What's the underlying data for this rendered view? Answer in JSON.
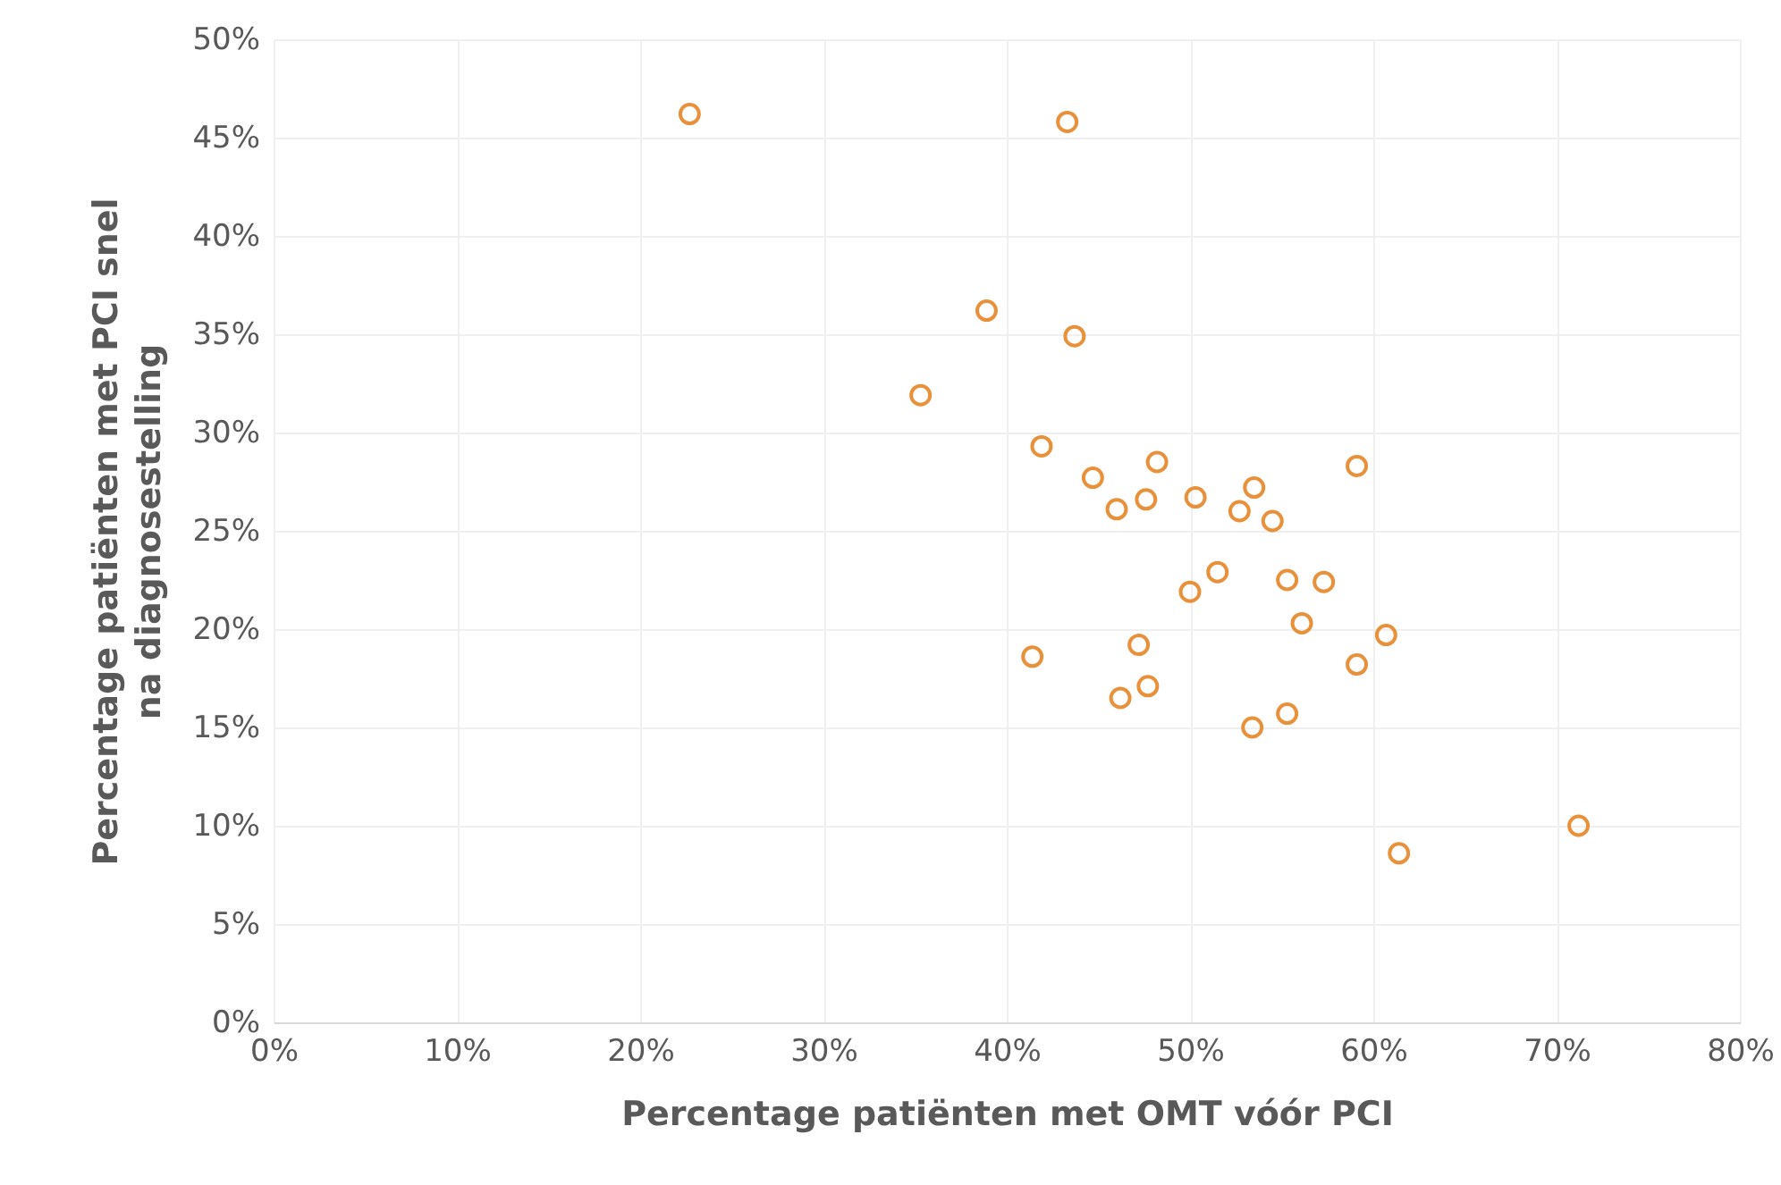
{
  "chart_data": {
    "type": "scatter",
    "xlabel": "Percentage patiënten met OMT vóór PCI",
    "ylabel": "Percentage patiënten met PCI snel\nna diagnosestelling",
    "xlim": [
      0,
      80
    ],
    "ylim": [
      0,
      50
    ],
    "xticks": [
      {
        "value": 0,
        "label": "0%"
      },
      {
        "value": 10,
        "label": "10%"
      },
      {
        "value": 20,
        "label": "20%"
      },
      {
        "value": 30,
        "label": "30%"
      },
      {
        "value": 40,
        "label": "40%"
      },
      {
        "value": 50,
        "label": "50%"
      },
      {
        "value": 60,
        "label": "60%"
      },
      {
        "value": 70,
        "label": "70%"
      },
      {
        "value": 80,
        "label": "80%"
      }
    ],
    "yticks": [
      {
        "value": 0,
        "label": "0%"
      },
      {
        "value": 5,
        "label": "5%"
      },
      {
        "value": 10,
        "label": "10%"
      },
      {
        "value": 15,
        "label": "15%"
      },
      {
        "value": 20,
        "label": "20%"
      },
      {
        "value": 25,
        "label": "25%"
      },
      {
        "value": 30,
        "label": "30%"
      },
      {
        "value": 35,
        "label": "35%"
      },
      {
        "value": 40,
        "label": "40%"
      },
      {
        "value": 45,
        "label": "45%"
      },
      {
        "value": 50,
        "label": "50%"
      }
    ],
    "grid": true,
    "marker": "circle",
    "series": [
      {
        "color": "#e8913a",
        "x": [
          22.7,
          43.3,
          38.9,
          43.7,
          35.3,
          41.9,
          44.7,
          48.2,
          46.0,
          47.6,
          50.3,
          53.5,
          52.7,
          54.5,
          59.1,
          50.0,
          51.5,
          55.3,
          57.3,
          56.1,
          60.7,
          59.1,
          41.4,
          47.2,
          46.2,
          47.7,
          53.4,
          55.3,
          61.4,
          71.2
        ],
        "values": [
          46.2,
          45.8,
          36.2,
          34.9,
          31.9,
          29.3,
          27.7,
          28.5,
          26.1,
          26.6,
          26.7,
          27.2,
          26.0,
          25.5,
          28.3,
          21.9,
          22.9,
          22.5,
          22.4,
          20.3,
          19.7,
          18.2,
          18.6,
          19.2,
          16.5,
          17.1,
          15.0,
          15.7,
          8.6,
          10.0
        ]
      }
    ]
  }
}
